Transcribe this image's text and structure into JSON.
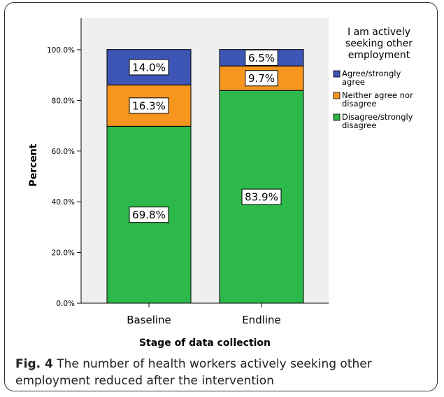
{
  "chart_data": {
    "type": "bar",
    "stacked": true,
    "categories": [
      "Baseline",
      "Endline"
    ],
    "series": [
      {
        "name": "Disagree/strongly disagree",
        "values": [
          69.8,
          83.9
        ],
        "labels": [
          "69.8%",
          "83.9%"
        ],
        "color": "#2db84b"
      },
      {
        "name": "Neither agree nor disagree",
        "values": [
          16.3,
          9.7
        ],
        "labels": [
          "16.3%",
          "9.7%"
        ],
        "color": "#f7961e"
      },
      {
        "name": "Agree/strongly agree",
        "values": [
          14.0,
          6.5
        ],
        "labels": [
          "14.0%",
          "6.5%"
        ],
        "color": "#3d55b4"
      }
    ],
    "xlabel": "Stage of data collection",
    "ylabel": "Percent",
    "ylim": [
      0,
      100
    ],
    "yticks": [
      0,
      20,
      40,
      60,
      80,
      100
    ],
    "ytick_labels": [
      "0.0%",
      "20.0%",
      "40.0%",
      "60.0%",
      "80.0%",
      "100.0%"
    ],
    "legend_title": "I am actively seeking other employment",
    "legend_position": "right",
    "grid": false,
    "plot_background": "#efefef"
  },
  "caption": {
    "label": "Fig. 4",
    "text": " The number of health workers actively seeking other employment reduced after the intervention"
  }
}
